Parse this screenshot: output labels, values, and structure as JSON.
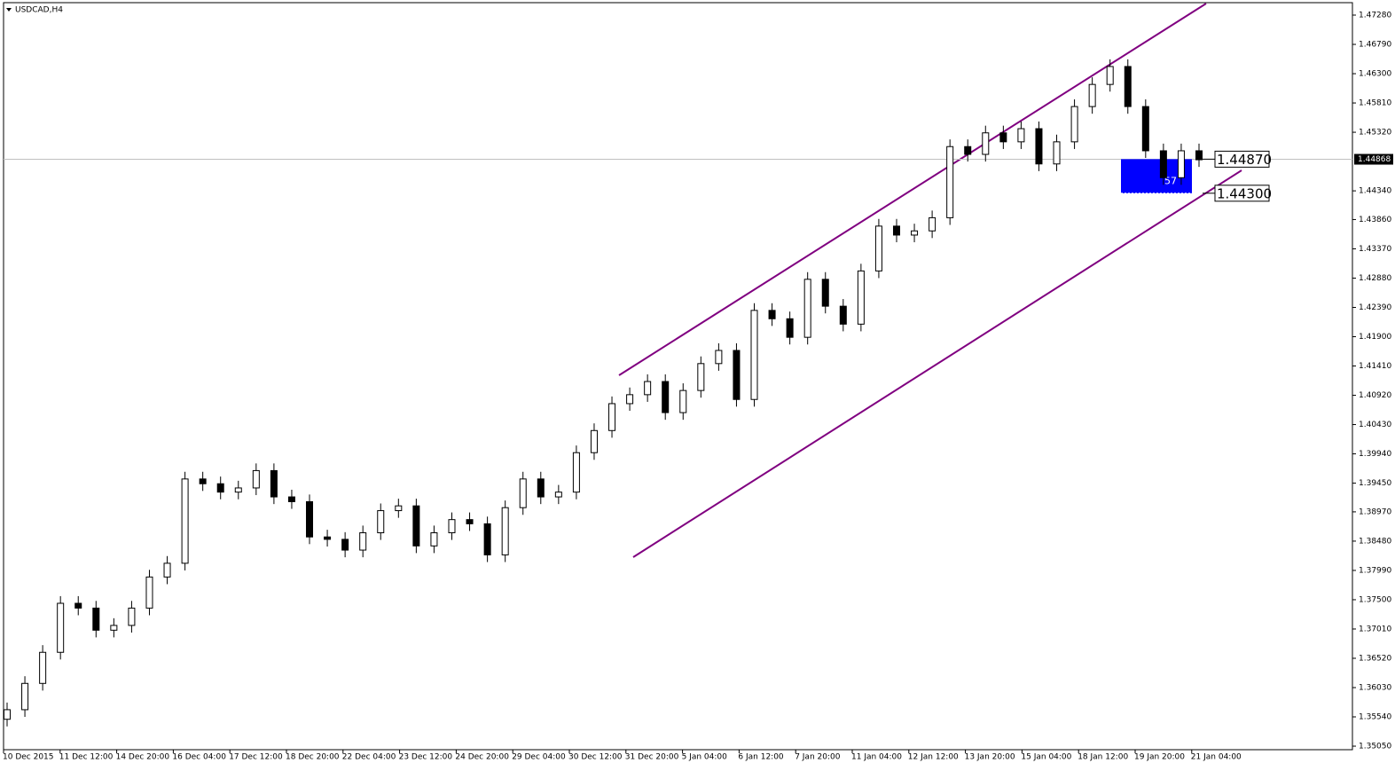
{
  "chart_data": {
    "type": "candlestick",
    "title": "USDCAD,H4",
    "x_labels": [
      "10 Dec 2015",
      "11 Dec 12:00",
      "14 Dec 20:00",
      "16 Dec 04:00",
      "17 Dec 12:00",
      "18 Dec 20:00",
      "22 Dec 04:00",
      "23 Dec 12:00",
      "24 Dec 20:00",
      "29 Dec 04:00",
      "30 Dec 12:00",
      "31 Dec 20:00",
      "5 Jan 04:00",
      "6 Jan 12:00",
      "7 Jan 20:00",
      "11 Jan 04:00",
      "12 Jan 12:00",
      "13 Jan 20:00",
      "15 Jan 04:00",
      "18 Jan 12:00",
      "19 Jan 20:00",
      "21 Jan 04:00"
    ],
    "open": [
      1.355,
      1.3566,
      1.361,
      1.3662,
      1.3744,
      1.3736,
      1.3699,
      1.3707,
      1.3736,
      1.3788,
      1.3811,
      1.3952,
      1.3944,
      1.393,
      1.3937,
      1.3966,
      1.3922,
      1.3914,
      1.3855,
      1.3851,
      1.3833,
      1.3862,
      1.3899,
      1.3907,
      1.384,
      1.3862,
      1.3884,
      1.3877,
      1.3825,
      1.3904,
      1.3952,
      1.3922,
      1.393,
      1.3996,
      1.4033,
      1.4078,
      1.4093,
      1.4115,
      1.4063,
      1.41,
      1.4145,
      1.4167,
      1.4085,
      1.4234,
      1.422,
      1.4189,
      1.4286,
      1.4241,
      1.4211,
      1.43,
      1.4375,
      1.436,
      1.4367,
      1.4389,
      1.4508,
      1.4495,
      1.4531,
      1.4516,
      1.4538,
      1.4479,
      1.4516,
      1.4575,
      1.4612,
      1.4642,
      1.4575,
      1.4501,
      1.4456,
      1.4501
    ],
    "high": [
      1.3578,
      1.3622,
      1.3674,
      1.3756,
      1.3756,
      1.3748,
      1.3719,
      1.3748,
      1.38,
      1.3823,
      1.3964,
      1.3964,
      1.3956,
      1.3949,
      1.3978,
      1.3978,
      1.3934,
      1.3926,
      1.3867,
      1.3863,
      1.3874,
      1.3911,
      1.3919,
      1.3919,
      1.3874,
      1.3896,
      1.3896,
      1.3889,
      1.3916,
      1.3964,
      1.3964,
      1.3942,
      1.4008,
      1.4045,
      1.409,
      1.4105,
      1.4127,
      1.4127,
      1.4112,
      1.4157,
      1.4179,
      1.4179,
      1.4246,
      1.4246,
      1.4232,
      1.4298,
      1.4298,
      1.4253,
      1.4312,
      1.4387,
      1.4387,
      1.4379,
      1.4401,
      1.452,
      1.452,
      1.4543,
      1.4543,
      1.455,
      1.455,
      1.4528,
      1.4587,
      1.4624,
      1.4654,
      1.4654,
      1.4587,
      1.4513,
      1.4513,
      1.4513
    ],
    "low": [
      1.3538,
      1.3554,
      1.3598,
      1.365,
      1.3724,
      1.3687,
      1.3687,
      1.3695,
      1.3724,
      1.3776,
      1.3799,
      1.3932,
      1.3918,
      1.3918,
      1.3925,
      1.391,
      1.3902,
      1.3843,
      1.3839,
      1.3821,
      1.3821,
      1.385,
      1.3887,
      1.3828,
      1.3828,
      1.385,
      1.3865,
      1.3813,
      1.3813,
      1.3892,
      1.391,
      1.391,
      1.3918,
      1.3984,
      1.4021,
      1.4066,
      1.4081,
      1.4051,
      1.4051,
      1.4088,
      1.4133,
      1.4073,
      1.4073,
      1.4208,
      1.4177,
      1.4177,
      1.4229,
      1.4199,
      1.4199,
      1.4288,
      1.4348,
      1.4348,
      1.4355,
      1.4377,
      1.4483,
      1.4483,
      1.4504,
      1.4504,
      1.4467,
      1.4467,
      1.4504,
      1.4563,
      1.46,
      1.4563,
      1.4489,
      1.4444,
      1.4444,
      1.4474
    ],
    "close": [
      1.3566,
      1.361,
      1.3662,
      1.3744,
      1.3736,
      1.3699,
      1.3707,
      1.3736,
      1.3788,
      1.3811,
      1.3952,
      1.3944,
      1.393,
      1.3937,
      1.3966,
      1.3922,
      1.3914,
      1.3855,
      1.3851,
      1.3833,
      1.3862,
      1.3899,
      1.3907,
      1.384,
      1.3862,
      1.3884,
      1.3877,
      1.3825,
      1.3904,
      1.3952,
      1.3922,
      1.393,
      1.3996,
      1.4033,
      1.4078,
      1.4093,
      1.4115,
      1.4063,
      1.41,
      1.4145,
      1.4167,
      1.4085,
      1.4234,
      1.422,
      1.4189,
      1.4286,
      1.4241,
      1.4211,
      1.43,
      1.4375,
      1.436,
      1.4367,
      1.4389,
      1.4508,
      1.4495,
      1.4531,
      1.4516,
      1.4538,
      1.4479,
      1.4516,
      1.4575,
      1.4612,
      1.4642,
      1.4575,
      1.4501,
      1.4456,
      1.4501,
      1.4486
    ],
    "ylim": [
      1.34991,
      1.47488
    ],
    "yticks": [
      {
        "value": 1.4728,
        "label": "1.47280"
      },
      {
        "value": 1.4679,
        "label": "1.46790"
      },
      {
        "value": 1.463,
        "label": "1.46300"
      },
      {
        "value": 1.4581,
        "label": "1.45810"
      },
      {
        "value": 1.4532,
        "label": "1.45320"
      },
      {
        "value": 1.4434,
        "label": "1.44340"
      },
      {
        "value": 1.4386,
        "label": "1.43860"
      },
      {
        "value": 1.4337,
        "label": "1.43370"
      },
      {
        "value": 1.4288,
        "label": "1.42880"
      },
      {
        "value": 1.4239,
        "label": "1.42390"
      },
      {
        "value": 1.419,
        "label": "1.41900"
      },
      {
        "value": 1.4141,
        "label": "1.41410"
      },
      {
        "value": 1.4092,
        "label": "1.40920"
      },
      {
        "value": 1.4043,
        "label": "1.40430"
      },
      {
        "value": 1.3994,
        "label": "1.39940"
      },
      {
        "value": 1.3945,
        "label": "1.39450"
      },
      {
        "value": 1.3897,
        "label": "1.38970"
      },
      {
        "value": 1.3848,
        "label": "1.38480"
      },
      {
        "value": 1.3799,
        "label": "1.37990"
      },
      {
        "value": 1.375,
        "label": "1.37500"
      },
      {
        "value": 1.3701,
        "label": "1.37010"
      },
      {
        "value": 1.3652,
        "label": "1.36520"
      },
      {
        "value": 1.3603,
        "label": "1.36030"
      },
      {
        "value": 1.3554,
        "label": "1.35540"
      },
      {
        "value": 1.3505,
        "label": "1.35050"
      }
    ],
    "current_price": {
      "value": 1.44868,
      "label": "1.44868"
    },
    "levels": [
      {
        "value": 1.4487,
        "label": "1.44870"
      },
      {
        "value": 1.443,
        "label": "1.44300"
      }
    ],
    "box_label": "57"
  }
}
